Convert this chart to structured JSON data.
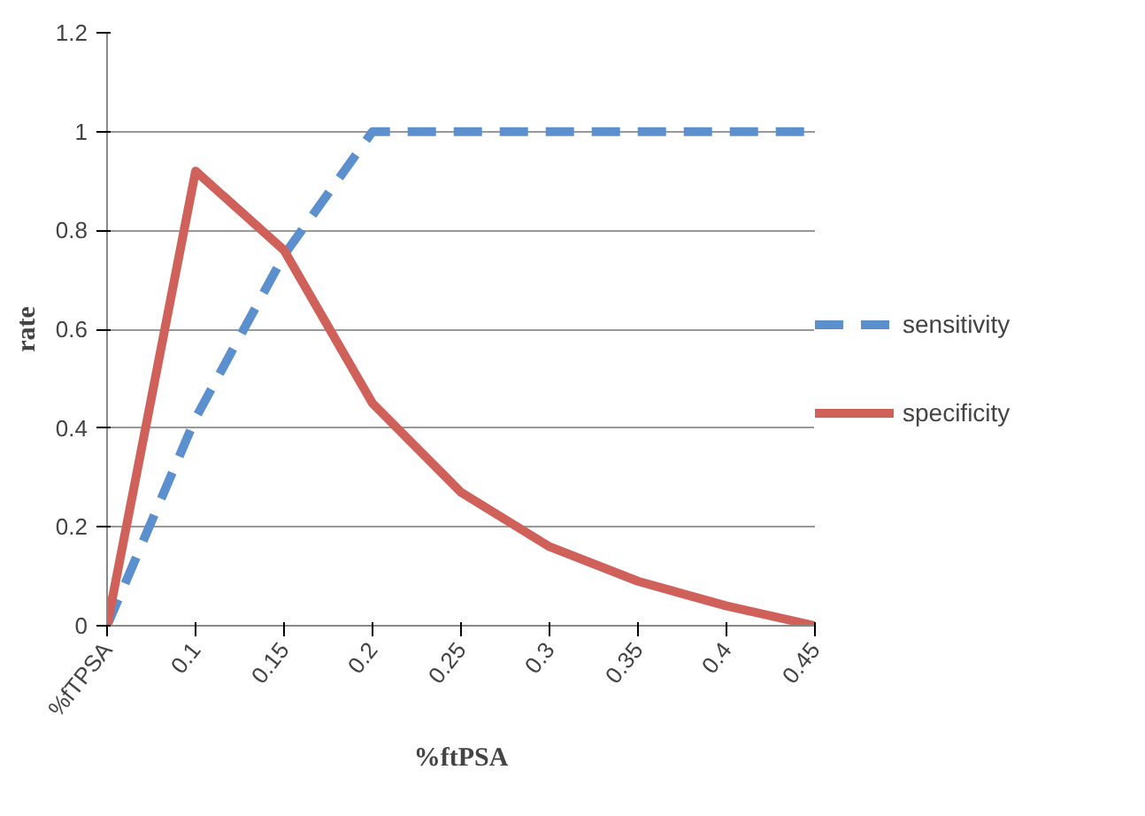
{
  "chart_data": {
    "type": "line",
    "xlabel": "%ftPSA",
    "ylabel": "rate",
    "categories": [
      "%fTPSA",
      "0.1",
      "0.15",
      "0.2",
      "0.25",
      "0.3",
      "0.35",
      "0.4",
      "0.45"
    ],
    "ylim": [
      0,
      1.2
    ],
    "yticks": [
      0,
      0.2,
      0.4,
      0.6,
      0.8,
      1,
      1.2
    ],
    "grid": "y",
    "legend": "right",
    "marker": "none",
    "series": [
      {
        "name": "sensitivity",
        "color": "#5b8fcd",
        "line_style": "dashed",
        "values": [
          0,
          0.42,
          0.75,
          1,
          1,
          1,
          1,
          1,
          1
        ]
      },
      {
        "name": "specificity",
        "color": "#d0605a",
        "line_style": "solid",
        "values": [
          0,
          0.92,
          0.76,
          0.45,
          0.27,
          0.16,
          0.09,
          0.04,
          0
        ]
      }
    ]
  }
}
